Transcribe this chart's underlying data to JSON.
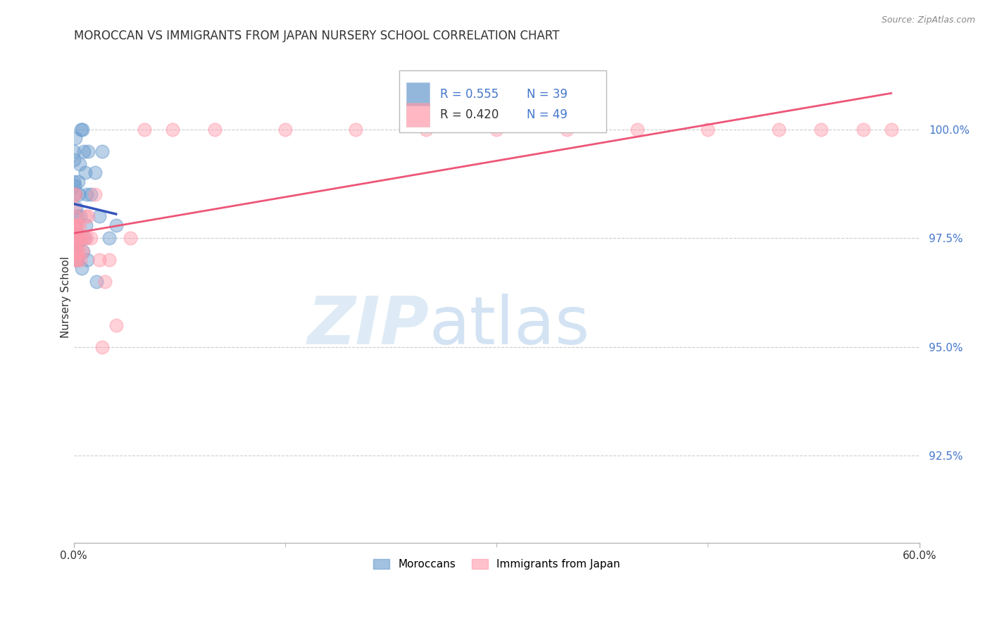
{
  "title": "MOROCCAN VS IMMIGRANTS FROM JAPAN NURSERY SCHOOL CORRELATION CHART",
  "source": "Source: ZipAtlas.com",
  "ylabel": "Nursery School",
  "ytick_values": [
    92.5,
    95.0,
    97.5,
    100.0
  ],
  "xlim": [
    0.0,
    60.0
  ],
  "ylim": [
    90.5,
    101.8
  ],
  "legend_label1": "Moroccans",
  "legend_label2": "Immigrants from Japan",
  "r1": 0.555,
  "n1": 39,
  "r2": 0.42,
  "n2": 49,
  "blue_color": "#6699cc",
  "pink_color": "#ff99aa",
  "blue_line_color": "#3355bb",
  "pink_line_color": "#ee5577",
  "watermark_zip": "ZIP",
  "watermark_atlas": "atlas",
  "blue_x": [
    0.02,
    0.03,
    0.04,
    0.05,
    0.06,
    0.07,
    0.08,
    0.09,
    0.1,
    0.12,
    0.14,
    0.16,
    0.18,
    0.2,
    0.22,
    0.25,
    0.28,
    0.3,
    0.35,
    0.4,
    0.45,
    0.5,
    0.6,
    0.7,
    0.8,
    0.9,
    1.0,
    1.2,
    1.5,
    1.8,
    2.0,
    2.5,
    3.0,
    1.6,
    0.55,
    0.65,
    0.75,
    0.85,
    0.95
  ],
  "blue_y": [
    99.5,
    99.3,
    98.8,
    98.5,
    98.7,
    97.5,
    97.8,
    97.2,
    99.8,
    97.5,
    97.3,
    98.2,
    97.0,
    98.0,
    97.6,
    97.4,
    97.0,
    98.8,
    98.5,
    99.2,
    98.0,
    100.0,
    100.0,
    99.5,
    99.0,
    98.5,
    99.5,
    98.5,
    99.0,
    98.0,
    99.5,
    97.5,
    97.8,
    96.5,
    96.8,
    97.2,
    97.5,
    97.8,
    97.0
  ],
  "pink_x": [
    0.02,
    0.03,
    0.04,
    0.05,
    0.06,
    0.07,
    0.08,
    0.09,
    0.1,
    0.12,
    0.14,
    0.16,
    0.18,
    0.2,
    0.22,
    0.25,
    0.28,
    0.3,
    0.35,
    0.4,
    0.45,
    0.5,
    0.6,
    0.7,
    0.8,
    0.9,
    1.0,
    1.2,
    1.5,
    1.8,
    2.0,
    2.2,
    2.5,
    3.0,
    4.0,
    5.0,
    7.0,
    10.0,
    15.0,
    20.0,
    25.0,
    30.0,
    35.0,
    40.0,
    45.0,
    50.0,
    53.0,
    56.0,
    58.0
  ],
  "pink_y": [
    98.5,
    98.2,
    97.8,
    98.0,
    97.5,
    97.3,
    97.8,
    97.0,
    98.5,
    97.2,
    97.5,
    97.8,
    97.0,
    97.5,
    97.2,
    97.8,
    97.0,
    97.5,
    97.2,
    97.8,
    97.0,
    97.5,
    97.2,
    97.5,
    98.0,
    97.5,
    98.0,
    97.5,
    98.5,
    97.0,
    95.0,
    96.5,
    97.0,
    95.5,
    97.5,
    100.0,
    100.0,
    100.0,
    100.0,
    100.0,
    100.0,
    100.0,
    100.0,
    100.0,
    100.0,
    100.0,
    100.0,
    100.0,
    100.0
  ]
}
